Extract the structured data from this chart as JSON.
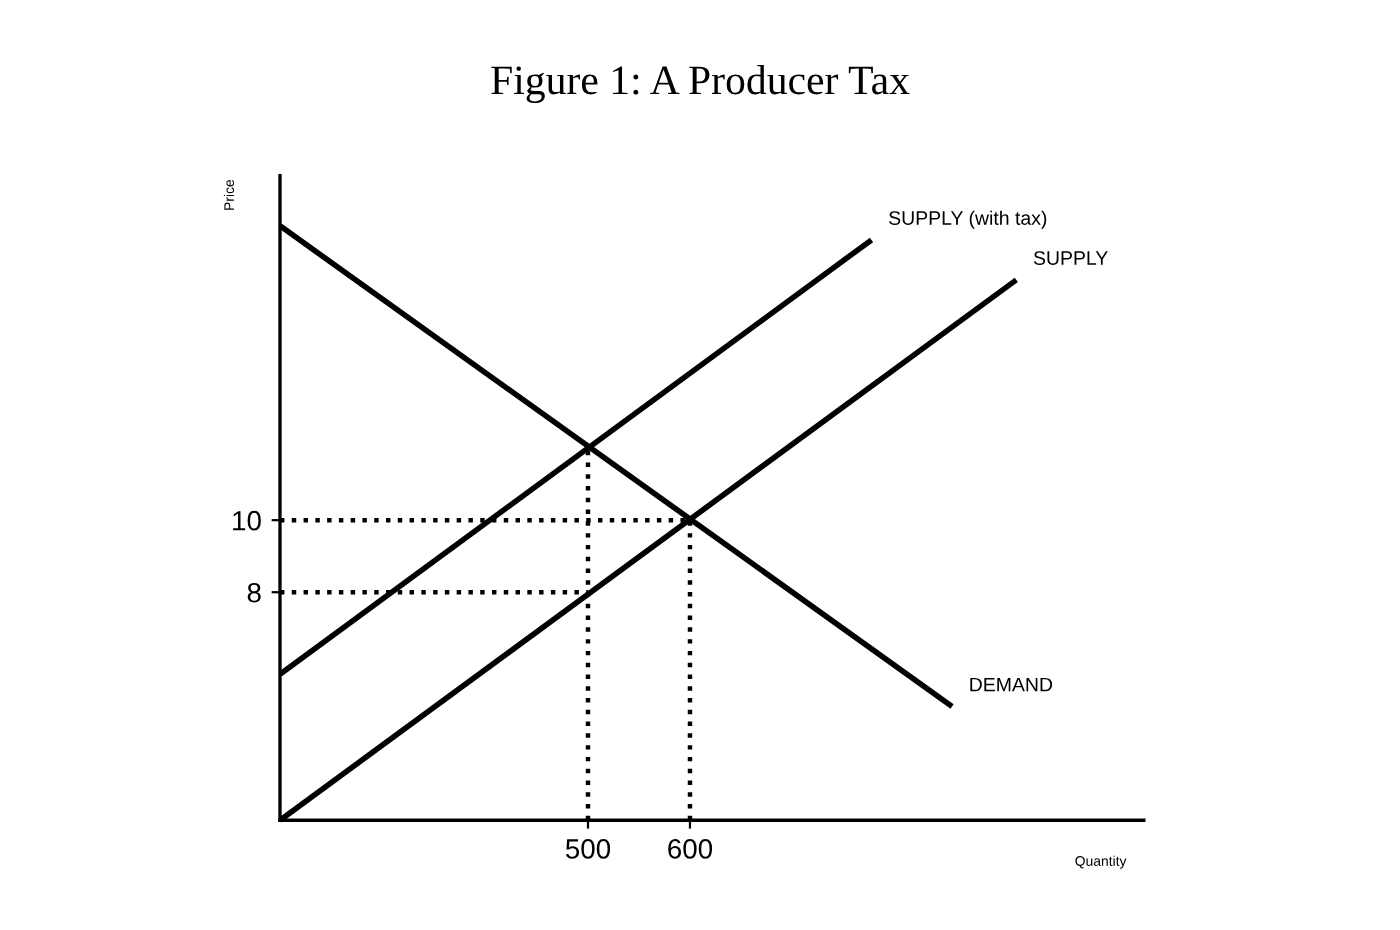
{
  "chart_data": {
    "type": "line",
    "title": "Figure 1: A Producer Tax",
    "xlabel": "Quantity",
    "ylabel": "Price",
    "xlim": [
      198,
      1045
    ],
    "ylim": [
      1.67,
      19.56
    ],
    "xticks": [
      500,
      600
    ],
    "yticks": [
      8,
      10
    ],
    "series": [
      {
        "name": "SUPPLY (with tax)",
        "color": "#000000",
        "line_style": "solid",
        "x": [
          198,
          778
        ],
        "values": [
          5.72,
          17.78
        ]
      },
      {
        "name": "SUPPLY",
        "color": "#000000",
        "line_style": "solid",
        "x": [
          198,
          920
        ],
        "values": [
          1.67,
          16.67
        ]
      },
      {
        "name": "DEMAND",
        "color": "#000000",
        "line_style": "solid",
        "x": [
          198,
          857
        ],
        "values": [
          18.17,
          4.83
        ]
      },
      {
        "color": "#000000",
        "line_style": "dotted",
        "x": [
          198,
          600
        ],
        "values": [
          10,
          10
        ]
      },
      {
        "color": "#000000",
        "line_style": "dotted",
        "x": [
          198,
          500
        ],
        "values": [
          8,
          8
        ]
      },
      {
        "color": "#000000",
        "line_style": "dotted",
        "x": [
          500,
          500
        ],
        "values": [
          1.67,
          12.06
        ]
      },
      {
        "color": "#000000",
        "line_style": "dotted",
        "x": [
          600,
          600
        ],
        "values": [
          1.67,
          10
        ]
      }
    ]
  }
}
